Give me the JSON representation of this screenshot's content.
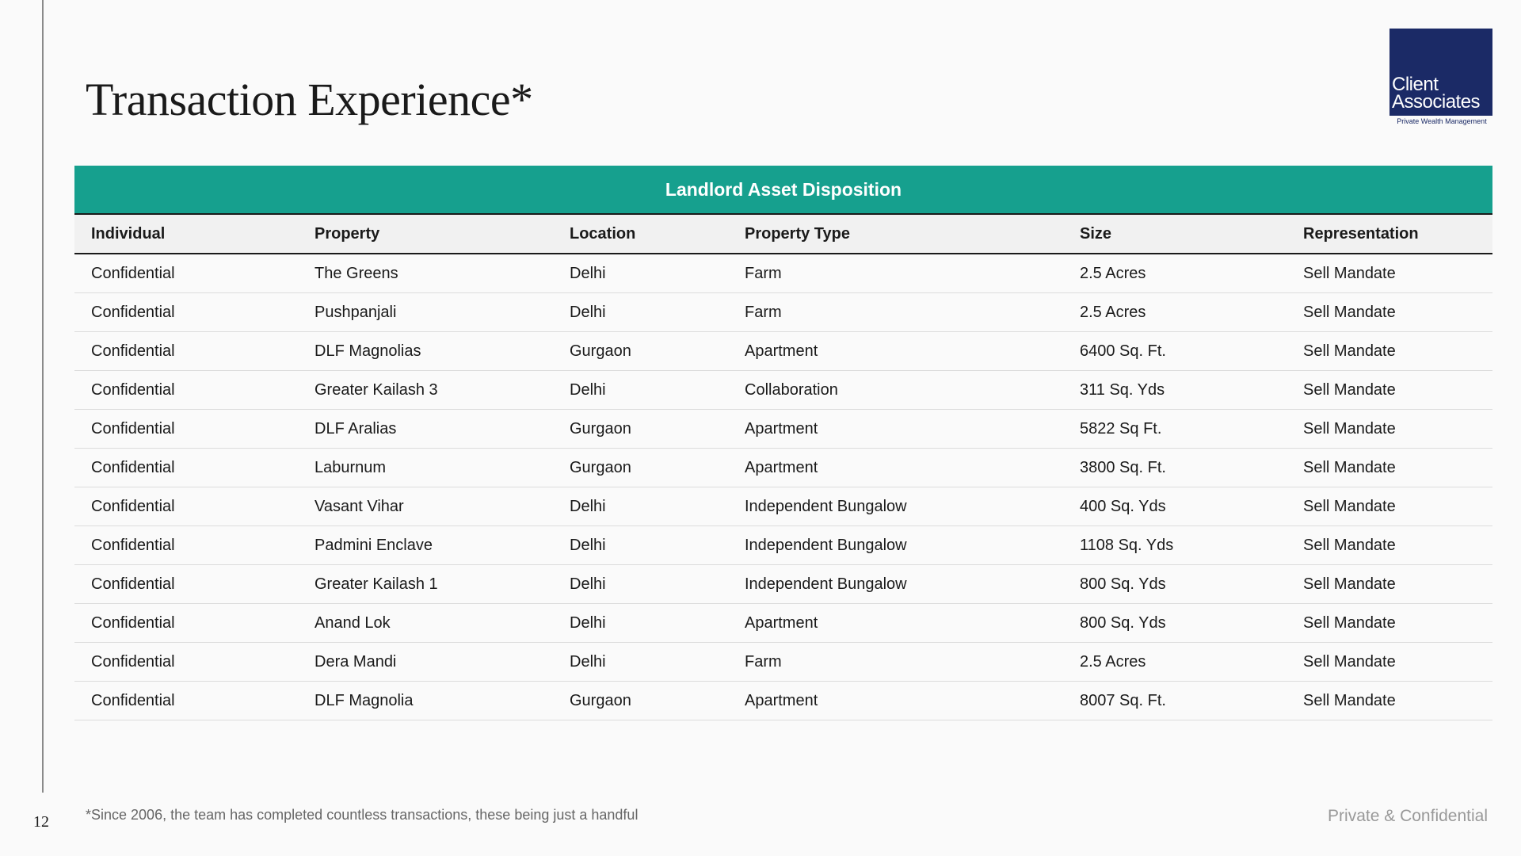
{
  "header": {
    "title": "Transaction Experience*",
    "logo": {
      "line1": "Client",
      "line2": "Associates",
      "tagline": "Private Wealth Management"
    }
  },
  "table": {
    "title": "Landlord Asset Disposition",
    "columns": [
      "Individual",
      "Property",
      "Location",
      "Property Type",
      "Size",
      "Representation"
    ],
    "rows": [
      [
        "Confidential",
        "The Greens",
        "Delhi",
        "Farm",
        "2.5 Acres",
        "Sell Mandate"
      ],
      [
        "Confidential",
        "Pushpanjali",
        "Delhi",
        "Farm",
        "2.5 Acres",
        "Sell Mandate"
      ],
      [
        "Confidential",
        "DLF Magnolias",
        "Gurgaon",
        "Apartment",
        "6400 Sq. Ft.",
        "Sell Mandate"
      ],
      [
        "Confidential",
        "Greater Kailash 3",
        "Delhi",
        "Collaboration",
        "311 Sq. Yds",
        "Sell Mandate"
      ],
      [
        "Confidential",
        "DLF Aralias",
        "Gurgaon",
        "Apartment",
        "5822 Sq Ft.",
        "Sell Mandate"
      ],
      [
        "Confidential",
        "Laburnum",
        "Gurgaon",
        "Apartment",
        "3800 Sq. Ft.",
        "Sell Mandate"
      ],
      [
        "Confidential",
        "Vasant Vihar",
        "Delhi",
        "Independent Bungalow",
        "400 Sq. Yds",
        "Sell Mandate"
      ],
      [
        "Confidential",
        "Padmini Enclave",
        "Delhi",
        "Independent Bungalow",
        "1108 Sq. Yds",
        "Sell Mandate"
      ],
      [
        "Confidential",
        "Greater Kailash 1",
        "Delhi",
        "Independent Bungalow",
        "800 Sq. Yds",
        "Sell Mandate"
      ],
      [
        "Confidential",
        "Anand Lok",
        "Delhi",
        "Apartment",
        "800 Sq. Yds",
        "Sell Mandate"
      ],
      [
        "Confidential",
        "Dera Mandi",
        "Delhi",
        "Farm",
        "2.5 Acres",
        "Sell Mandate"
      ],
      [
        "Confidential",
        "DLF Magnolia",
        "Gurgaon",
        "Apartment",
        "8007 Sq. Ft.",
        "Sell Mandate"
      ]
    ]
  },
  "footer": {
    "note": "*Since 2006, the team has completed countless transactions, these being just a handful",
    "page": "12",
    "confidential": "Private & Confidential"
  }
}
